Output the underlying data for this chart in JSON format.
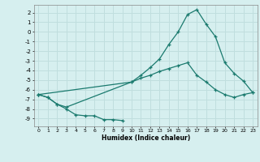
{
  "title": "",
  "xlabel": "Humidex (Indice chaleur)",
  "ylabel": "",
  "bg_color": "#d6efef",
  "grid_color": "#c0dede",
  "line_color": "#1a7a6e",
  "xlim": [
    -0.5,
    23.5
  ],
  "ylim": [
    -9.8,
    2.8
  ],
  "xticks": [
    0,
    1,
    2,
    3,
    4,
    5,
    6,
    7,
    8,
    9,
    10,
    11,
    12,
    13,
    14,
    15,
    16,
    17,
    18,
    19,
    20,
    21,
    22,
    23
  ],
  "yticks": [
    2,
    1,
    0,
    -1,
    -2,
    -3,
    -4,
    -5,
    -6,
    -7,
    -8,
    -9
  ],
  "series": [
    {
      "x": [
        0,
        1,
        2,
        3,
        4,
        5,
        6,
        7,
        8,
        9
      ],
      "y": [
        -6.5,
        -6.8,
        -7.5,
        -8.0,
        -8.6,
        -8.7,
        -8.7,
        -9.1,
        -9.1,
        -9.2
      ]
    },
    {
      "x": [
        0,
        1,
        2,
        3,
        10,
        11,
        12,
        13,
        14,
        15,
        16,
        17,
        18,
        19,
        20,
        21,
        22,
        23
      ],
      "y": [
        -6.5,
        -6.8,
        -7.5,
        -7.8,
        -5.2,
        -4.5,
        -3.7,
        -2.8,
        -1.3,
        0.0,
        1.8,
        2.3,
        0.8,
        -0.5,
        -3.2,
        -4.3,
        -5.1,
        -6.3
      ]
    },
    {
      "x": [
        0,
        10,
        11,
        12,
        13,
        14,
        15,
        16,
        17,
        18,
        19,
        20,
        21,
        22,
        23
      ],
      "y": [
        -6.5,
        -5.2,
        -4.8,
        -4.5,
        -4.1,
        -3.8,
        -3.5,
        -3.2,
        -4.5,
        -5.2,
        -6.0,
        -6.5,
        -6.8,
        -6.5,
        -6.3
      ]
    }
  ]
}
